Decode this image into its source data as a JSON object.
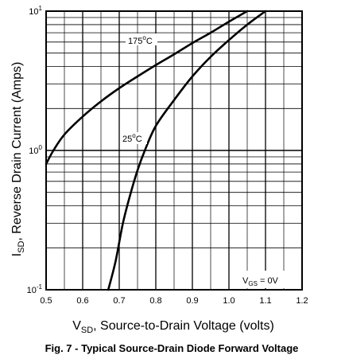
{
  "chart_data": {
    "type": "line",
    "title": "Fig. 7 - Typical Source-Drain Diode Forward Voltage",
    "xlabel": {
      "main": "V",
      "sub": "SD",
      "rest": ", Source-to-Drain Voltage (volts)"
    },
    "ylabel": {
      "main": "I",
      "sub": "SD",
      "rest": ", Reverse Drain Current (Amps)"
    },
    "xlim": [
      0.5,
      1.2
    ],
    "ylim": [
      0.1,
      10
    ],
    "yscale": "log",
    "grid": true,
    "x_ticks": [
      "0.5",
      "0.6",
      "0.7",
      "0.8",
      "0.9",
      "1.0",
      "1.1",
      "1.2"
    ],
    "y_ticks": [
      {
        "value": 0.1,
        "base": "10",
        "exp": "-1"
      },
      {
        "value": 1,
        "base": "10",
        "exp": "0"
      },
      {
        "value": 10,
        "base": "10",
        "exp": "1"
      }
    ],
    "condition": {
      "main": "V",
      "sub": "GS",
      "rest": " = 0V"
    },
    "series": [
      {
        "name": "175°C",
        "label": {
          "text": "175",
          "sup": "o",
          "unit": "C"
        },
        "x": [
          0.5,
          0.52,
          0.55,
          0.6,
          0.65,
          0.7,
          0.75,
          0.8,
          0.85,
          0.9,
          0.95,
          1.0,
          1.05
        ],
        "y": [
          0.8,
          1.0,
          1.3,
          1.75,
          2.25,
          2.8,
          3.4,
          4.1,
          4.9,
          5.9,
          7.0,
          8.4,
          10
        ]
      },
      {
        "name": "25°C",
        "label": {
          "text": "25",
          "sup": "o",
          "unit": "C"
        },
        "x": [
          0.67,
          0.69,
          0.71,
          0.73,
          0.75,
          0.77,
          0.8,
          0.85,
          0.9,
          0.95,
          1.0,
          1.05,
          1.1
        ],
        "y": [
          0.1,
          0.16,
          0.3,
          0.48,
          0.72,
          1.0,
          1.5,
          2.3,
          3.4,
          4.7,
          6.2,
          8.0,
          10
        ]
      }
    ],
    "colors": {
      "grid": "#000000",
      "curve": "#000000"
    }
  }
}
